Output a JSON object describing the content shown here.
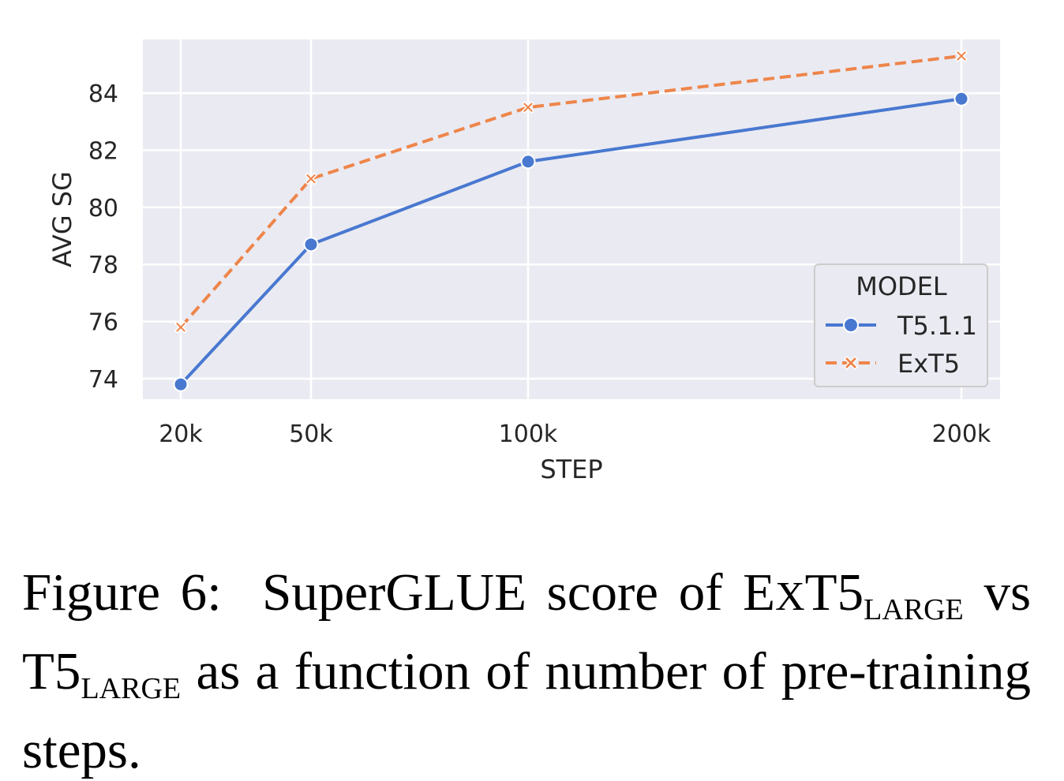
{
  "chart_data": {
    "type": "line",
    "x": [
      "20k",
      "50k",
      "100k",
      "200k"
    ],
    "x_values": [
      20000,
      50000,
      100000,
      200000
    ],
    "xlabel": "STEP",
    "ylabel": "AVG SG",
    "yticks": [
      74,
      76,
      78,
      80,
      82,
      84
    ],
    "ylim": [
      73.25,
      85.85
    ],
    "grid": true,
    "legend": {
      "title": "MODEL",
      "placement": "lower-right"
    },
    "series": [
      {
        "name": "T5.1.1",
        "values": [
          73.8,
          78.7,
          81.6,
          83.8
        ],
        "color": "#4878d0",
        "marker": "circle",
        "linestyle": "solid"
      },
      {
        "name": "ExT5",
        "values": [
          75.8,
          81.0,
          83.5,
          85.3
        ],
        "color": "#ee854a",
        "marker": "x",
        "linestyle": "dashed"
      }
    ]
  },
  "caption": {
    "prefix": "Figure 6:",
    "text_1": "SuperGLUE score of E",
    "ext_small": "X",
    "text_2": "T5",
    "sub_1": "LARGE",
    "text_3": "vs T5",
    "sub_2": "LARGE",
    "text_4": "as a function of number of pre-training steps."
  },
  "colors": {
    "plot_background": "#eaeaf2",
    "grid": "#ffffff",
    "t5": "#4878d0",
    "ext5": "#ee854a"
  }
}
